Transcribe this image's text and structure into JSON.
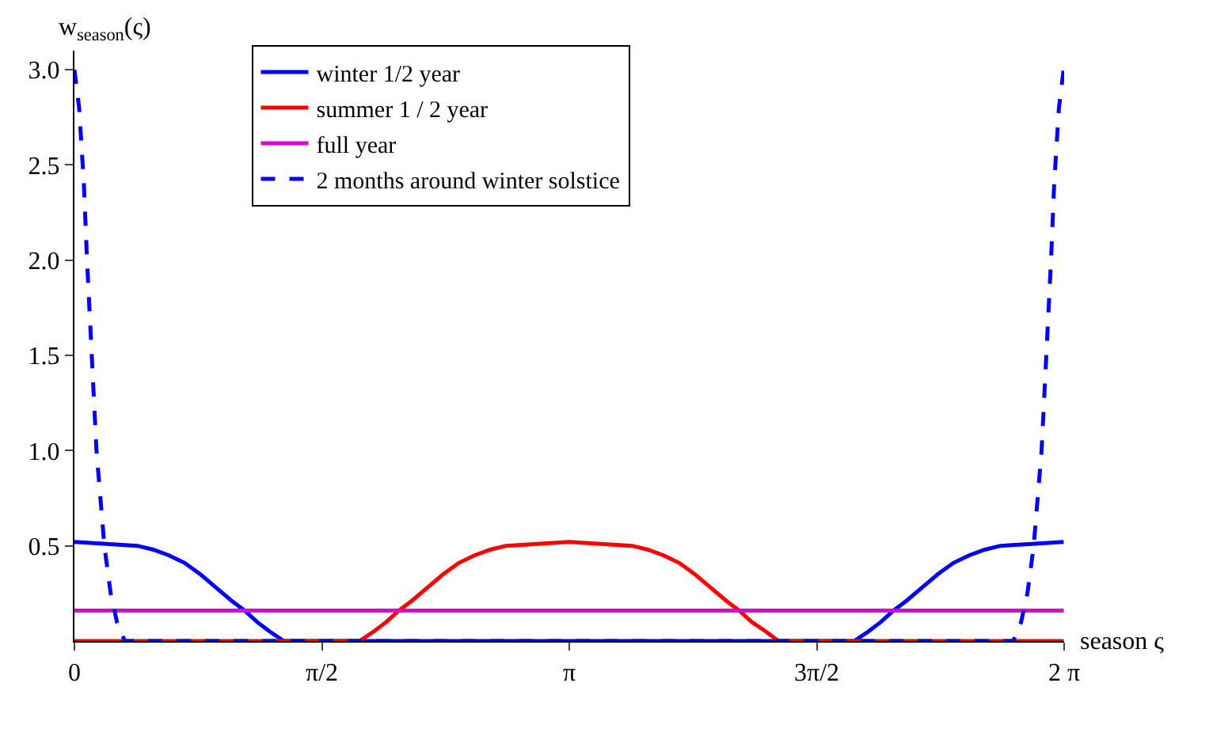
{
  "chart_data": {
    "type": "line",
    "xlabel": "season ς",
    "ylabel": "w$_{season}$(ς)",
    "xlim": [
      0,
      6.2832
    ],
    "ylim": [
      0,
      3.1
    ],
    "xticks": [
      0,
      {
        "value": 1.5708,
        "label": "π/2"
      },
      {
        "value": 3.1416,
        "label": "π"
      },
      {
        "value": 4.7124,
        "label": "3π/2"
      },
      {
        "value": 6.2832,
        "label": "2 π"
      }
    ],
    "yticks": [
      0.5,
      {
        "value": 1,
        "label": "1.0"
      },
      1.5,
      {
        "value": 2,
        "label": "2.0"
      },
      2.5,
      {
        "value": 3,
        "label": "3.0"
      }
    ],
    "grid": false,
    "legend": "top",
    "marker": "none",
    "series": [
      {
        "name": "winter 1/2 year",
        "color": "#0000ff",
        "line_style": "solid",
        "x": [
          0,
          0.2,
          0.4,
          0.5,
          0.6,
          0.7,
          0.8,
          0.9,
          1.0,
          1.08,
          1.16,
          1.24,
          1.33,
          2.0,
          3.14,
          4.3,
          4.95,
          5.04,
          5.12,
          5.2,
          5.28,
          5.38,
          5.48,
          5.58,
          5.68,
          5.78,
          5.88,
          6.08,
          6.28
        ],
        "values": [
          0.52,
          0.51,
          0.5,
          0.48,
          0.45,
          0.41,
          0.35,
          0.28,
          0.21,
          0.16,
          0.1,
          0.05,
          0,
          0,
          0,
          0,
          0,
          0.05,
          0.1,
          0.16,
          0.21,
          0.28,
          0.35,
          0.41,
          0.45,
          0.48,
          0.5,
          0.51,
          0.52
        ]
      },
      {
        "name": "summer 1 / 2 year",
        "color": "#ff0000",
        "line_style": "solid",
        "x": [
          0,
          0.9,
          1.81,
          1.9,
          1.98,
          2.06,
          2.14,
          2.24,
          2.34,
          2.44,
          2.54,
          2.64,
          2.74,
          2.94,
          3.14,
          3.34,
          3.54,
          3.64,
          3.74,
          3.84,
          3.94,
          4.04,
          4.14,
          4.22,
          4.3,
          4.39,
          4.47,
          5.4,
          6.28
        ],
        "values": [
          0,
          0,
          0,
          0.05,
          0.1,
          0.16,
          0.21,
          0.28,
          0.35,
          0.41,
          0.45,
          0.48,
          0.5,
          0.51,
          0.52,
          0.51,
          0.5,
          0.48,
          0.45,
          0.41,
          0.35,
          0.28,
          0.21,
          0.16,
          0.1,
          0.05,
          0,
          0,
          0
        ]
      },
      {
        "name": "full year",
        "color": "#dd00dd",
        "line_style": "solid",
        "x": [
          0,
          1.57,
          3.14,
          4.71,
          6.28
        ],
        "values": [
          0.16,
          0.16,
          0.16,
          0.16,
          0.16
        ]
      },
      {
        "name": "2 months around winter solstice",
        "color": "#0000ff",
        "line_style": "dashed",
        "x": [
          0,
          0.03,
          0.06,
          0.08,
          0.11,
          0.14,
          0.17,
          0.19,
          0.23,
          0.27,
          0.32,
          1.5,
          3.14,
          4.8,
          5.96,
          6.01,
          6.05,
          6.09,
          6.11,
          6.14,
          6.17,
          6.2,
          6.22,
          6.25,
          6.28
        ],
        "values": [
          3.0,
          2.8,
          2.4,
          2.0,
          1.5,
          1.0,
          0.7,
          0.5,
          0.25,
          0.1,
          0,
          0,
          0,
          0,
          0,
          0.1,
          0.25,
          0.5,
          0.7,
          1.0,
          1.5,
          2.0,
          2.4,
          2.8,
          3.0
        ]
      }
    ]
  }
}
